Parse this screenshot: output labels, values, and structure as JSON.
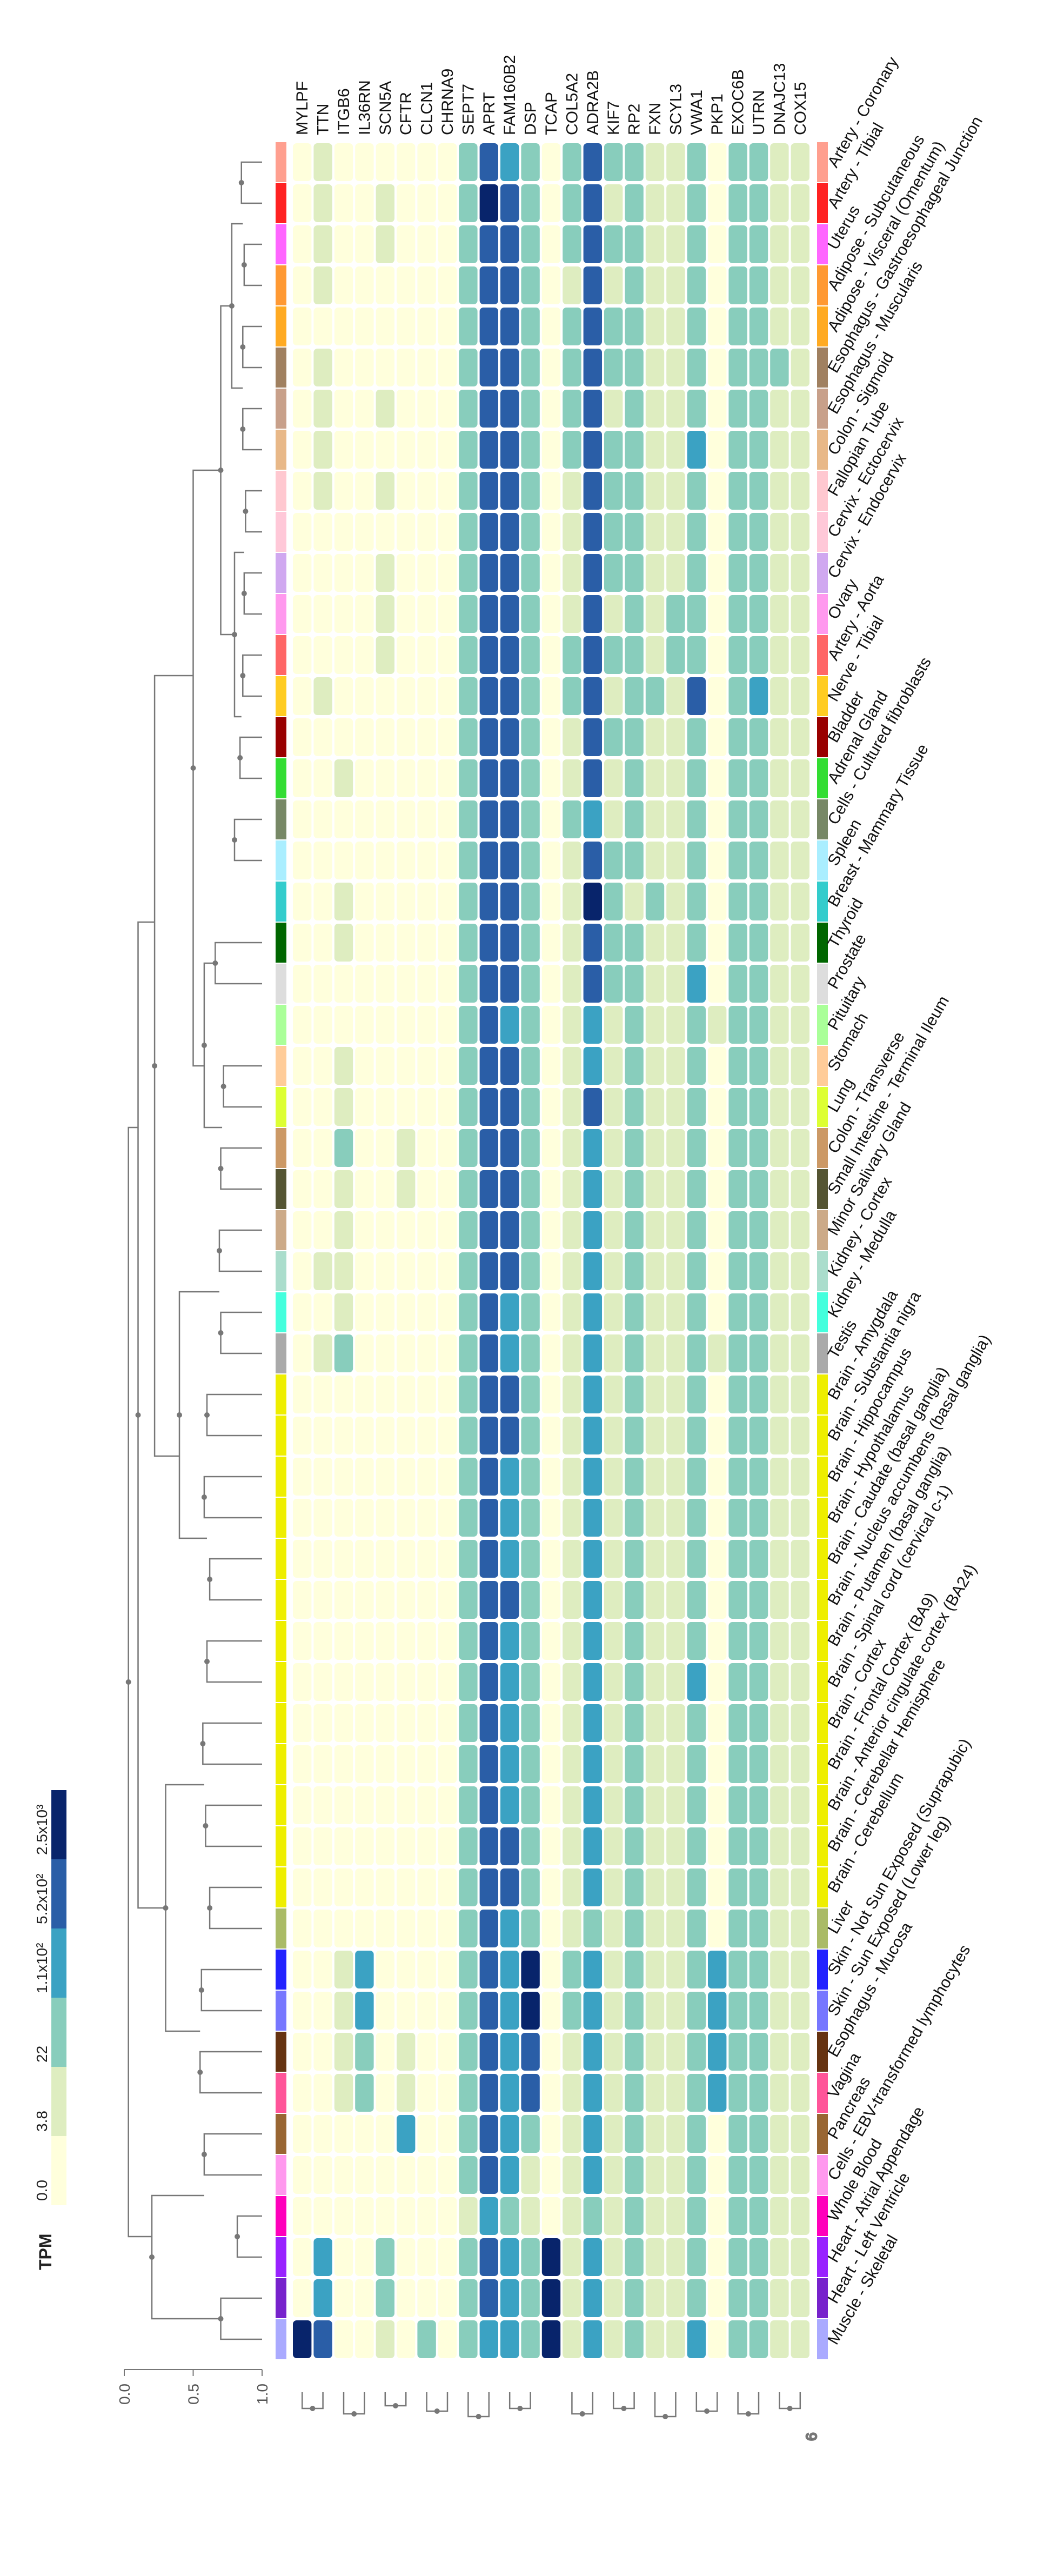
{
  "chart_data": {
    "type": "heatmap",
    "orientation": "rotated 90 degrees clockwise",
    "title": "",
    "genes": [
      "MYLPF",
      "TTN",
      "ITGB6",
      "IL36RN",
      "SCN5A",
      "CFTR",
      "CLCN1",
      "CHRNA9",
      "SEPT7",
      "APRT",
      "FAM160B2",
      "DSP",
      "TCAP",
      "COL5A2",
      "ADRA2B",
      "KIF7",
      "RP2",
      "FXN",
      "SCYL3",
      "VWA1",
      "PKP1",
      "EXOC6B",
      "UTRN",
      "DNAJC13",
      "COX15"
    ],
    "tissues": [
      "Artery - Coronary",
      "Artery - Tibial",
      "Uterus",
      "Adipose - Subcutaneous",
      "Adipose - Visceral (Omentum)",
      "Esophagus - Gastroesophageal Junction",
      "Esophagus - Muscularis",
      "Colon - Sigmoid",
      "Fallopian Tube",
      "Cervix - Ectocervix",
      "Cervix - Endocervix",
      "Ovary",
      "Artery - Aorta",
      "Nerve - Tibial",
      "Bladder",
      "Adrenal Gland",
      "Cells - Cultured fibroblasts",
      "Spleen",
      "Breast - Mammary Tissue",
      "Thyroid",
      "Prostate",
      "Pituitary",
      "Stomach",
      "Lung",
      "Colon - Transverse",
      "Small Intestine - Terminal Ileum",
      "Minor Salivary Gland",
      "Kidney - Cortex",
      "Kidney - Medulla",
      "Testis",
      "Brain - Amygdala",
      "Brain - Substantia nigra",
      "Brain - Hippocampus",
      "Brain - Hypothalamus",
      "Brain - Caudate (basal ganglia)",
      "Brain - Nucleus accumbens (basal ganglia)",
      "Brain - Putamen (basal ganglia)",
      "Brain - Spinal cord (cervical c-1)",
      "Brain - Cortex",
      "Brain - Frontal Cortex (BA9)",
      "Brain - Anterior cingulate cortex (BA24)",
      "Brain - Cerebellar Hemisphere",
      "Brain - Cerebellum",
      "Liver",
      "Skin - Not Sun Exposed (Suprapubic)",
      "Skin - Sun Exposed (Lower leg)",
      "Esophagus - Mucosa",
      "Vagina",
      "Pancreas",
      "Cells - EBV-transformed lymphocytes",
      "Whole Blood",
      "Heart - Atrial Appendage",
      "Heart - Left Ventricle",
      "Muscle - Skeletal"
    ],
    "tissue_colors": [
      "#ff9f8f",
      "#ff2222",
      "#ff66ff",
      "#ff9933",
      "#ffaa22",
      "#a08060",
      "#c8a08a",
      "#e8b888",
      "#ffc8d0",
      "#ffc8d8",
      "#d0a8f0",
      "#ff99ee",
      "#ff6666",
      "#ffcc22",
      "#990000",
      "#33dd33",
      "#778866",
      "#aaeeff",
      "#33cccc",
      "#006600",
      "#dddddd",
      "#aaff99",
      "#ffcc99",
      "#ddff33",
      "#cc9966",
      "#555533",
      "#ccaa88",
      "#aaddcc",
      "#44ffdd",
      "#aaaaaa",
      "#eeee00",
      "#eeee00",
      "#eeee00",
      "#eeee00",
      "#eeee00",
      "#eeee00",
      "#eeee00",
      "#eeee00",
      "#eeee00",
      "#eeee00",
      "#eeee00",
      "#eeee00",
      "#eeee00",
      "#aabb66",
      "#2222ff",
      "#7777ff",
      "#663311",
      "#ff5599",
      "#996633",
      "#ff99ee",
      "#ff00bb",
      "#9922ff",
      "#7722cc",
      "#aaaaff"
    ],
    "values_level": [
      [
        0,
        1,
        0,
        0,
        0,
        0,
        0,
        0,
        2,
        4,
        3,
        2,
        0,
        2,
        4,
        2,
        2,
        1,
        1,
        2,
        0,
        2,
        2,
        1,
        1
      ],
      [
        0,
        1,
        0,
        0,
        1,
        0,
        0,
        0,
        2,
        5,
        4,
        2,
        0,
        2,
        4,
        1,
        2,
        1,
        1,
        2,
        0,
        2,
        2,
        1,
        1
      ],
      [
        0,
        1,
        0,
        0,
        1,
        0,
        0,
        0,
        2,
        4,
        4,
        2,
        0,
        2,
        4,
        2,
        2,
        1,
        1,
        2,
        0,
        2,
        2,
        1,
        1
      ],
      [
        0,
        1,
        0,
        0,
        0,
        0,
        0,
        0,
        2,
        4,
        4,
        2,
        0,
        1,
        4,
        1,
        2,
        1,
        1,
        2,
        0,
        2,
        2,
        1,
        1
      ],
      [
        0,
        0,
        0,
        0,
        0,
        0,
        0,
        0,
        2,
        4,
        4,
        2,
        0,
        2,
        4,
        2,
        2,
        1,
        1,
        2,
        0,
        2,
        2,
        1,
        1
      ],
      [
        0,
        1,
        0,
        0,
        0,
        0,
        0,
        0,
        2,
        4,
        4,
        2,
        0,
        2,
        4,
        2,
        2,
        1,
        1,
        2,
        0,
        2,
        2,
        2,
        1
      ],
      [
        0,
        1,
        0,
        0,
        1,
        0,
        0,
        0,
        2,
        4,
        4,
        2,
        0,
        2,
        4,
        1,
        2,
        1,
        1,
        2,
        0,
        2,
        2,
        1,
        1
      ],
      [
        0,
        1,
        0,
        0,
        0,
        0,
        0,
        0,
        2,
        4,
        4,
        2,
        0,
        2,
        4,
        2,
        2,
        1,
        1,
        3,
        0,
        2,
        2,
        1,
        1
      ],
      [
        0,
        1,
        0,
        0,
        1,
        0,
        0,
        0,
        2,
        4,
        4,
        2,
        0,
        1,
        4,
        2,
        2,
        1,
        1,
        2,
        0,
        2,
        2,
        1,
        1
      ],
      [
        0,
        0,
        0,
        0,
        0,
        0,
        0,
        0,
        2,
        4,
        4,
        2,
        0,
        1,
        4,
        2,
        2,
        1,
        1,
        2,
        0,
        2,
        2,
        1,
        1
      ],
      [
        0,
        0,
        0,
        0,
        1,
        0,
        0,
        0,
        2,
        4,
        4,
        2,
        0,
        1,
        4,
        2,
        2,
        1,
        1,
        2,
        0,
        2,
        2,
        1,
        1
      ],
      [
        0,
        0,
        0,
        0,
        1,
        0,
        0,
        0,
        2,
        4,
        4,
        2,
        0,
        1,
        4,
        1,
        2,
        1,
        2,
        2,
        0,
        2,
        2,
        1,
        1
      ],
      [
        0,
        0,
        0,
        0,
        1,
        0,
        0,
        0,
        2,
        4,
        4,
        2,
        0,
        2,
        4,
        2,
        2,
        1,
        2,
        2,
        0,
        2,
        2,
        1,
        1
      ],
      [
        0,
        1,
        0,
        0,
        0,
        0,
        0,
        0,
        2,
        4,
        4,
        2,
        0,
        2,
        4,
        1,
        2,
        2,
        1,
        4,
        0,
        2,
        3,
        1,
        1
      ],
      [
        0,
        0,
        0,
        0,
        0,
        0,
        0,
        0,
        2,
        4,
        4,
        2,
        0,
        1,
        4,
        2,
        2,
        1,
        1,
        2,
        0,
        2,
        2,
        1,
        1
      ],
      [
        0,
        0,
        1,
        0,
        0,
        0,
        0,
        0,
        2,
        4,
        4,
        2,
        0,
        1,
        4,
        1,
        2,
        1,
        1,
        2,
        0,
        2,
        2,
        1,
        1
      ],
      [
        0,
        0,
        0,
        0,
        0,
        0,
        0,
        0,
        2,
        4,
        4,
        2,
        0,
        2,
        3,
        1,
        2,
        1,
        1,
        2,
        0,
        2,
        2,
        1,
        1
      ],
      [
        0,
        0,
        0,
        0,
        0,
        0,
        0,
        0,
        2,
        4,
        4,
        2,
        0,
        1,
        4,
        2,
        2,
        1,
        1,
        2,
        0,
        2,
        2,
        1,
        1
      ],
      [
        0,
        0,
        1,
        0,
        0,
        0,
        0,
        0,
        2,
        4,
        4,
        2,
        0,
        1,
        5,
        2,
        1,
        2,
        1,
        2,
        0,
        2,
        2,
        1,
        1
      ],
      [
        0,
        0,
        1,
        0,
        0,
        0,
        0,
        0,
        2,
        4,
        4,
        2,
        0,
        1,
        4,
        2,
        2,
        1,
        1,
        2,
        0,
        2,
        2,
        1,
        1
      ],
      [
        0,
        0,
        0,
        0,
        0,
        0,
        0,
        0,
        2,
        4,
        4,
        2,
        0,
        1,
        4,
        2,
        2,
        1,
        1,
        3,
        0,
        2,
        2,
        1,
        1
      ],
      [
        0,
        0,
        0,
        0,
        0,
        0,
        0,
        0,
        2,
        4,
        3,
        2,
        0,
        1,
        3,
        1,
        2,
        1,
        1,
        2,
        1,
        2,
        2,
        1,
        1
      ],
      [
        0,
        0,
        1,
        0,
        0,
        0,
        0,
        0,
        2,
        4,
        4,
        2,
        0,
        1,
        3,
        1,
        2,
        1,
        1,
        2,
        0,
        2,
        2,
        1,
        1
      ],
      [
        0,
        0,
        1,
        0,
        0,
        0,
        0,
        0,
        2,
        4,
        4,
        2,
        0,
        1,
        4,
        1,
        2,
        1,
        1,
        2,
        0,
        2,
        2,
        1,
        1
      ],
      [
        0,
        0,
        2,
        0,
        0,
        1,
        0,
        0,
        2,
        4,
        4,
        2,
        0,
        1,
        3,
        1,
        2,
        1,
        1,
        2,
        0,
        2,
        2,
        1,
        1
      ],
      [
        0,
        0,
        1,
        0,
        0,
        1,
        0,
        0,
        2,
        4,
        4,
        2,
        0,
        1,
        3,
        1,
        2,
        1,
        1,
        2,
        0,
        2,
        2,
        1,
        1
      ],
      [
        0,
        0,
        1,
        0,
        0,
        0,
        0,
        0,
        2,
        4,
        4,
        2,
        0,
        1,
        3,
        1,
        2,
        1,
        1,
        2,
        0,
        2,
        2,
        1,
        1
      ],
      [
        0,
        1,
        1,
        0,
        0,
        0,
        0,
        0,
        2,
        4,
        4,
        2,
        0,
        1,
        3,
        1,
        2,
        1,
        1,
        2,
        0,
        2,
        2,
        1,
        1
      ],
      [
        0,
        0,
        1,
        0,
        0,
        0,
        0,
        0,
        2,
        4,
        3,
        2,
        0,
        1,
        3,
        1,
        2,
        1,
        1,
        2,
        0,
        2,
        2,
        1,
        1
      ],
      [
        0,
        1,
        2,
        0,
        0,
        0,
        0,
        0,
        2,
        4,
        3,
        2,
        0,
        1,
        3,
        1,
        2,
        1,
        1,
        2,
        1,
        2,
        2,
        1,
        1
      ],
      [
        0,
        0,
        0,
        0,
        0,
        0,
        0,
        0,
        2,
        4,
        4,
        2,
        0,
        1,
        3,
        1,
        2,
        1,
        1,
        2,
        0,
        2,
        2,
        1,
        1
      ],
      [
        0,
        0,
        0,
        0,
        0,
        0,
        0,
        0,
        2,
        4,
        4,
        2,
        0,
        1,
        3,
        1,
        2,
        1,
        1,
        2,
        0,
        2,
        2,
        1,
        1
      ],
      [
        0,
        0,
        0,
        0,
        0,
        0,
        0,
        0,
        2,
        4,
        3,
        2,
        0,
        1,
        3,
        1,
        2,
        1,
        1,
        2,
        0,
        2,
        2,
        1,
        1
      ],
      [
        0,
        0,
        0,
        0,
        0,
        0,
        0,
        0,
        2,
        4,
        3,
        2,
        0,
        1,
        3,
        1,
        2,
        1,
        1,
        2,
        0,
        2,
        2,
        1,
        1
      ],
      [
        0,
        0,
        0,
        0,
        0,
        0,
        0,
        0,
        2,
        4,
        3,
        2,
        0,
        1,
        3,
        1,
        2,
        1,
        1,
        2,
        0,
        2,
        2,
        1,
        1
      ],
      [
        0,
        0,
        0,
        0,
        0,
        0,
        0,
        0,
        2,
        4,
        4,
        2,
        0,
        1,
        3,
        1,
        2,
        1,
        1,
        2,
        0,
        2,
        2,
        1,
        1
      ],
      [
        0,
        0,
        0,
        0,
        0,
        0,
        0,
        0,
        2,
        4,
        3,
        2,
        0,
        1,
        3,
        1,
        2,
        1,
        1,
        2,
        0,
        2,
        2,
        1,
        1
      ],
      [
        0,
        0,
        0,
        0,
        0,
        0,
        0,
        0,
        2,
        4,
        3,
        2,
        0,
        1,
        3,
        1,
        2,
        1,
        1,
        3,
        0,
        2,
        2,
        1,
        1
      ],
      [
        0,
        0,
        0,
        0,
        0,
        0,
        0,
        0,
        2,
        4,
        3,
        2,
        0,
        1,
        3,
        1,
        2,
        1,
        1,
        2,
        0,
        2,
        2,
        1,
        1
      ],
      [
        0,
        0,
        0,
        0,
        0,
        0,
        0,
        0,
        2,
        4,
        3,
        2,
        0,
        1,
        3,
        1,
        2,
        1,
        1,
        2,
        0,
        2,
        2,
        1,
        1
      ],
      [
        0,
        0,
        0,
        0,
        0,
        0,
        0,
        0,
        2,
        4,
        3,
        2,
        0,
        1,
        3,
        1,
        2,
        1,
        1,
        2,
        0,
        2,
        2,
        1,
        1
      ],
      [
        0,
        0,
        0,
        0,
        0,
        0,
        0,
        0,
        2,
        4,
        4,
        2,
        0,
        1,
        3,
        1,
        2,
        1,
        1,
        2,
        0,
        2,
        2,
        1,
        1
      ],
      [
        0,
        0,
        0,
        0,
        0,
        0,
        0,
        0,
        2,
        4,
        4,
        2,
        0,
        1,
        3,
        1,
        2,
        1,
        1,
        2,
        0,
        2,
        2,
        1,
        1
      ],
      [
        0,
        0,
        0,
        0,
        0,
        0,
        0,
        0,
        2,
        4,
        3,
        2,
        0,
        1,
        2,
        1,
        2,
        1,
        1,
        2,
        0,
        2,
        2,
        1,
        1
      ],
      [
        0,
        0,
        1,
        3,
        0,
        0,
        0,
        0,
        2,
        4,
        3,
        5,
        0,
        2,
        3,
        1,
        2,
        1,
        1,
        2,
        3,
        2,
        2,
        1,
        1
      ],
      [
        0,
        0,
        1,
        3,
        0,
        0,
        0,
        0,
        2,
        4,
        3,
        5,
        0,
        2,
        3,
        1,
        2,
        1,
        1,
        2,
        3,
        2,
        2,
        1,
        1
      ],
      [
        0,
        0,
        1,
        2,
        0,
        1,
        0,
        0,
        2,
        4,
        3,
        4,
        0,
        1,
        3,
        1,
        2,
        1,
        1,
        2,
        3,
        2,
        2,
        1,
        1
      ],
      [
        0,
        0,
        1,
        2,
        0,
        1,
        0,
        0,
        2,
        4,
        3,
        4,
        0,
        1,
        3,
        1,
        2,
        1,
        1,
        2,
        3,
        2,
        2,
        1,
        1
      ],
      [
        0,
        0,
        0,
        0,
        0,
        3,
        0,
        0,
        2,
        4,
        3,
        2,
        0,
        1,
        3,
        1,
        2,
        1,
        1,
        2,
        0,
        2,
        2,
        1,
        1
      ],
      [
        0,
        0,
        0,
        0,
        0,
        0,
        0,
        0,
        2,
        4,
        3,
        1,
        0,
        1,
        3,
        1,
        2,
        1,
        1,
        2,
        0,
        2,
        2,
        1,
        1
      ],
      [
        0,
        0,
        0,
        0,
        0,
        0,
        0,
        0,
        1,
        3,
        2,
        1,
        0,
        1,
        2,
        1,
        2,
        1,
        1,
        2,
        0,
        2,
        2,
        1,
        1
      ],
      [
        0,
        3,
        0,
        0,
        2,
        0,
        0,
        0,
        2,
        4,
        3,
        2,
        5,
        1,
        3,
        1,
        2,
        1,
        1,
        2,
        0,
        2,
        2,
        1,
        1
      ],
      [
        0,
        3,
        0,
        0,
        2,
        0,
        0,
        0,
        2,
        4,
        3,
        2,
        5,
        1,
        3,
        1,
        2,
        1,
        1,
        2,
        0,
        2,
        2,
        1,
        1
      ],
      [
        5,
        4,
        0,
        0,
        1,
        0,
        2,
        0,
        2,
        3,
        3,
        2,
        5,
        1,
        3,
        1,
        2,
        1,
        1,
        3,
        0,
        2,
        2,
        1,
        1
      ]
    ],
    "color_scale": {
      "title": "TPM",
      "tick_labels": [
        "0.0",
        "3.8",
        "22",
        "1.1x10²",
        "5.2x10²",
        "2.5x10³"
      ],
      "colors": [
        "#ffffdc",
        "#deedc0",
        "#88cdbc",
        "#3ba2c3",
        "#2a5ea7",
        "#08246b"
      ]
    },
    "dendrogram_axis_ticks": [
      "0.0",
      "0.5",
      "1.0"
    ],
    "bottom_tree_label": "6"
  }
}
